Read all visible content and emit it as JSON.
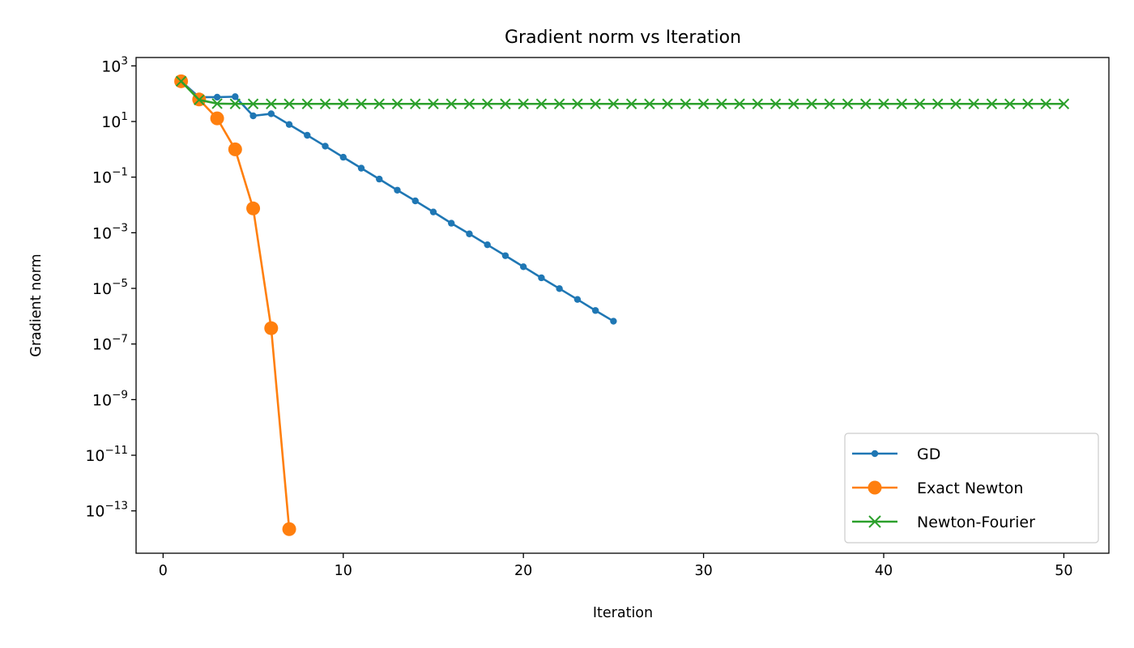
{
  "chart_data": {
    "type": "line",
    "title": "Gradient norm vs Iteration",
    "xlabel": "Iteration",
    "ylabel": "Gradient norm",
    "y_scale": "log",
    "grid": false,
    "legend_position": "lower-right",
    "xlim": [
      -1.5,
      52.5
    ],
    "ylim": [
      3e-15,
      2000
    ],
    "x_ticks": [
      0,
      10,
      20,
      30,
      40,
      50
    ],
    "x_tick_labels": [
      "0",
      "10",
      "20",
      "30",
      "40",
      "50"
    ],
    "y_tick_exponents": [
      3,
      1,
      -1,
      -3,
      -5,
      -7,
      -9,
      -11,
      -13
    ],
    "y_tick_base": "10",
    "series": [
      {
        "name": "GD",
        "color": "#1f77b4",
        "marker": "dot",
        "x": [
          1,
          2,
          3,
          4,
          5,
          6,
          7,
          8,
          9,
          10,
          11,
          12,
          13,
          14,
          15,
          16,
          17,
          18,
          19,
          20,
          21,
          22,
          23,
          24,
          25
        ],
        "y": [
          280,
          75,
          75,
          78,
          16,
          19,
          7.8,
          3.2,
          1.3,
          0.52,
          0.21,
          0.085,
          0.034,
          0.014,
          0.0056,
          0.0022,
          0.00091,
          0.00037,
          0.00015,
          6e-05,
          2.4e-05,
          9.8e-06,
          4e-06,
          1.6e-06,
          6.6e-07
        ]
      },
      {
        "name": "Exact Newton",
        "color": "#ff7f0e",
        "marker": "circle",
        "x": [
          1,
          2,
          3,
          4,
          5,
          6,
          7
        ],
        "y": [
          280,
          62,
          13,
          1.0,
          0.0075,
          3.7e-07,
          2.2e-14
        ]
      },
      {
        "name": "Newton-Fourier",
        "color": "#2ca02c",
        "marker": "x",
        "x": [
          1,
          2,
          3,
          4,
          5,
          6,
          7,
          8,
          9,
          10,
          11,
          12,
          13,
          14,
          15,
          16,
          17,
          18,
          19,
          20,
          21,
          22,
          23,
          24,
          25,
          26,
          27,
          28,
          29,
          30,
          31,
          32,
          33,
          34,
          35,
          36,
          37,
          38,
          39,
          40,
          41,
          42,
          43,
          44,
          45,
          46,
          47,
          48,
          49,
          50
        ],
        "y": [
          280,
          60,
          44,
          43,
          43,
          43,
          43,
          43,
          43,
          43,
          43,
          43,
          43,
          43,
          43,
          43,
          43,
          43,
          43,
          43,
          43,
          43,
          43,
          43,
          43,
          43,
          43,
          43,
          43,
          43,
          43,
          43,
          43,
          43,
          43,
          43,
          43,
          43,
          43,
          43,
          43,
          43,
          43,
          43,
          43,
          43,
          43,
          43,
          43,
          43
        ]
      }
    ]
  }
}
